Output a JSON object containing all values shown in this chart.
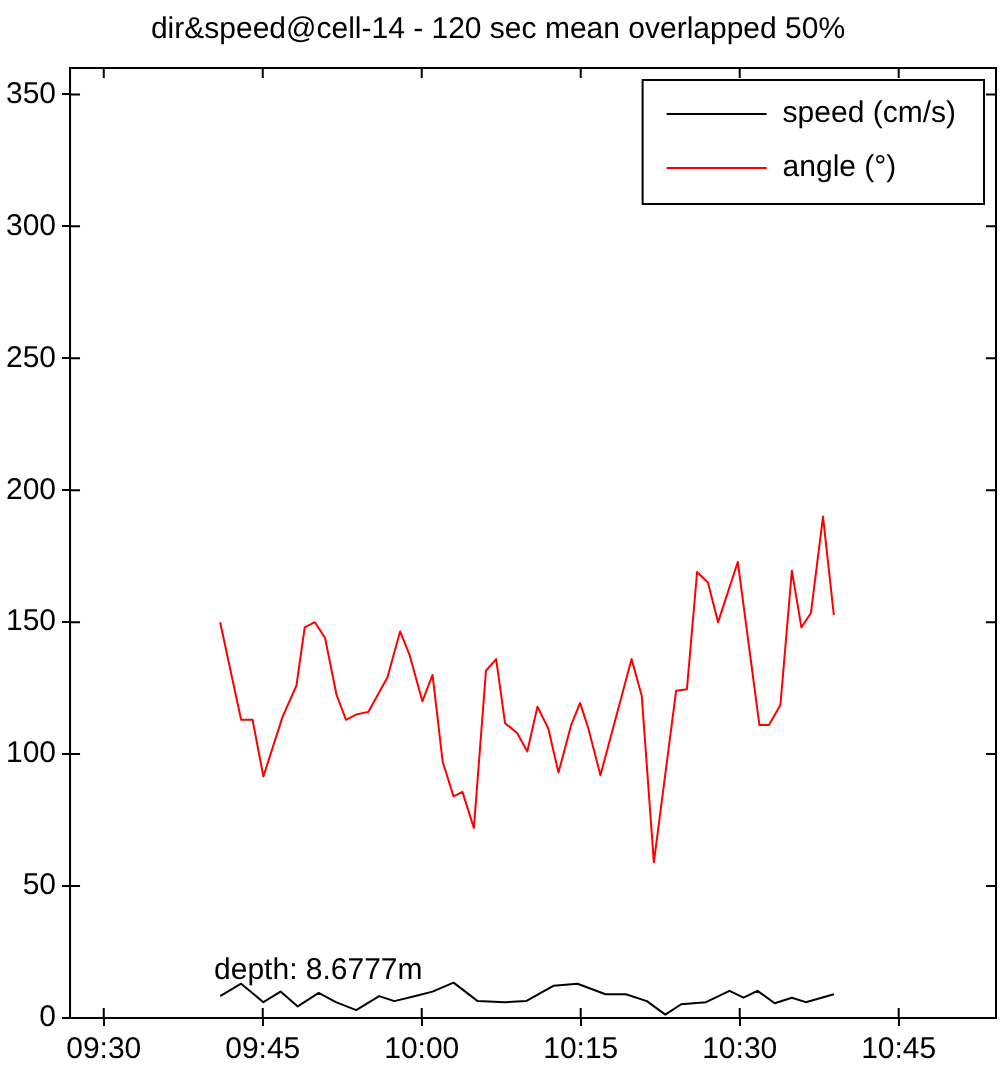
{
  "chart_data": {
    "type": "line",
    "title": "dir&speed@cell-14 - 120 sec mean overlapped 50%",
    "xlim": [
      9.447,
      10.903
    ],
    "xticks": [
      {
        "value": 9.5,
        "label": "09:30"
      },
      {
        "value": 9.75,
        "label": "09:45"
      },
      {
        "value": 10,
        "label": "10:00"
      },
      {
        "value": 10.25,
        "label": "10:15"
      },
      {
        "value": 10.5,
        "label": "10:30"
      },
      {
        "value": 10.75,
        "label": "10:45"
      }
    ],
    "ylim": [
      0,
      360
    ],
    "yticks": [
      0,
      50,
      100,
      150,
      200,
      250,
      300,
      350
    ],
    "grid": false,
    "legend": "top right",
    "marker": "none",
    "line_style": "solid",
    "annotations": [
      "depth: 8.6777m"
    ],
    "series": [
      {
        "name": "speed (cm/s)",
        "color": "#000000",
        "x": [
          9.683,
          9.716,
          9.751,
          9.778,
          9.805,
          9.838,
          9.865,
          9.897,
          9.933,
          9.957,
          9.99,
          10.017,
          10.05,
          10.088,
          10.131,
          10.164,
          10.207,
          10.245,
          10.289,
          10.321,
          10.354,
          10.383,
          10.408,
          10.447,
          10.484,
          10.506,
          10.528,
          10.555,
          10.582,
          10.604,
          10.648
        ],
        "values": [
          8.3,
          13,
          6,
          10,
          4.4,
          9.5,
          6,
          3,
          8.3,
          6.4,
          8.3,
          10,
          13.4,
          6.4,
          6,
          6.4,
          12.2,
          13,
          9,
          9,
          6.4,
          1.3,
          5.2,
          6,
          10.3,
          7.7,
          10.3,
          5.6,
          7.7,
          6,
          9
        ]
      },
      {
        "name": "angle (°)",
        "color": "#ff0000",
        "x": [
          9.683,
          9.716,
          9.734,
          9.751,
          9.781,
          9.803,
          9.816,
          9.832,
          9.848,
          9.866,
          9.881,
          9.897,
          9.916,
          9.946,
          9.966,
          9.981,
          10.001,
          10.017,
          10.033,
          10.05,
          10.064,
          10.082,
          10.101,
          10.117,
          10.131,
          10.15,
          10.166,
          10.182,
          10.199,
          10.215,
          10.235,
          10.249,
          10.262,
          10.281,
          10.33,
          10.346,
          10.365,
          10.4,
          10.417,
          10.433,
          10.45,
          10.466,
          10.497,
          10.531,
          10.546,
          10.564,
          10.582,
          10.597,
          10.612,
          10.631,
          10.648
        ],
        "values": [
          150,
          113,
          113,
          91.5,
          114,
          126,
          148,
          150,
          144,
          122.5,
          113,
          115,
          116,
          129,
          146.5,
          137.5,
          120,
          130,
          97,
          84,
          85.7,
          72,
          131.6,
          136,
          111.7,
          108,
          101,
          118,
          109.7,
          93,
          111,
          119.4,
          109.7,
          92,
          136,
          122,
          59,
          124,
          124.6,
          169,
          165,
          150,
          172.8,
          111,
          111,
          118.6,
          169.5,
          148,
          153.5,
          190,
          152.7
        ]
      }
    ]
  }
}
